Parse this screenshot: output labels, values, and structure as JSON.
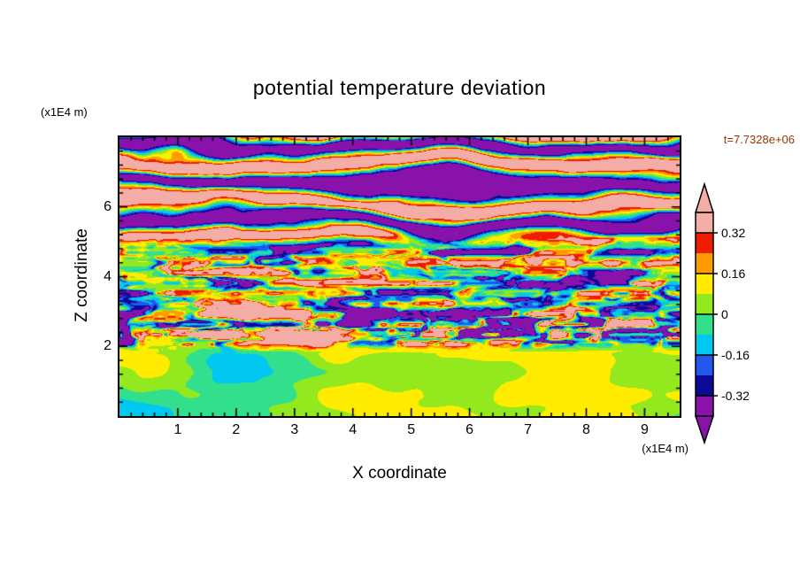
{
  "figure": {
    "title": "potential temperature deviation",
    "y_axis_unit": "(x1E4 m)",
    "x_axis_unit": "(x1E4 m)",
    "x_axis_title": "X coordinate",
    "y_axis_title": "Z coordinate",
    "time_label": "t=7.7328e+06"
  },
  "style": {
    "background": "#ffffff",
    "axis_color": "#000000",
    "time_color": "#993300"
  },
  "chart_data": {
    "type": "heatmap",
    "title": "potential temperature deviation",
    "xlabel": "X coordinate",
    "ylabel": "Z coordinate",
    "x_unit": "x1E4 m",
    "y_unit": "x1E4 m",
    "time": "t=7.7328e+06",
    "xlim": [
      0,
      9.6
    ],
    "ylim": [
      0,
      8
    ],
    "x_ticks": [
      1,
      2,
      3,
      4,
      5,
      6,
      7,
      8,
      9
    ],
    "y_ticks": [
      2,
      4,
      6
    ],
    "contour_interval": 0.08,
    "levels": [
      -0.4,
      -0.32,
      -0.24,
      -0.16,
      -0.08,
      0,
      0.08,
      0.16,
      0.24,
      0.32,
      0.4
    ],
    "palette": [
      {
        "range": [
          -0.4,
          -0.32
        ],
        "color": "#8812AA",
        "name": "purple"
      },
      {
        "range": [
          -0.32,
          -0.24
        ],
        "color": "#0A0A96",
        "name": "navy"
      },
      {
        "range": [
          -0.24,
          -0.16
        ],
        "color": "#2357EE",
        "name": "blue"
      },
      {
        "range": [
          -0.16,
          -0.08
        ],
        "color": "#00C8F0",
        "name": "cyan"
      },
      {
        "range": [
          -0.08,
          0
        ],
        "color": "#31DF8C",
        "name": "spring-green"
      },
      {
        "range": [
          0,
          0.08
        ],
        "color": "#94E81E",
        "name": "green-yellow"
      },
      {
        "range": [
          0.08,
          0.16
        ],
        "color": "#FFEC00",
        "name": "yellow"
      },
      {
        "range": [
          0.16,
          0.24
        ],
        "color": "#FF9C00",
        "name": "orange"
      },
      {
        "range": [
          0.24,
          0.32
        ],
        "color": "#EE1C00",
        "name": "red"
      },
      {
        "range": [
          0.32,
          0.4
        ],
        "color": "#F4ACA6",
        "name": "pink"
      }
    ],
    "colorbar": {
      "extend": "both",
      "ticks": [
        {
          "label": "0.32",
          "seg_index": 1
        },
        {
          "label": "0.16",
          "seg_index": 3
        },
        {
          "label": "0",
          "seg_index": 5
        },
        {
          "label": "-0.16",
          "seg_index": 7
        },
        {
          "label": "-0.32",
          "seg_index": 9
        }
      ]
    },
    "regions": [
      {
        "z_range": [
          0,
          2
        ],
        "description": "smooth weak anomalies, mostly |deviation| < 0.08; large green blobs (spring-green background with green-yellow swirls)"
      },
      {
        "z_range": [
          2,
          5
        ],
        "description": "fine-scale turbulent layer of horizontally elongated filaments spanning the full range (-0.4 to 0.4); greens dominate with yellow, orange, red, cyan, blue and navy streaks; strongest mixing near z = 2-2.5"
      },
      {
        "z_range": [
          5,
          8
        ],
        "description": "strongly stratified wavy horizontal bands alternating above +0.32 (pink) and below -0.32 (purple), with thin red/orange/cyan fringes at band edges; pink band at the very top and near z = 5"
      }
    ]
  }
}
